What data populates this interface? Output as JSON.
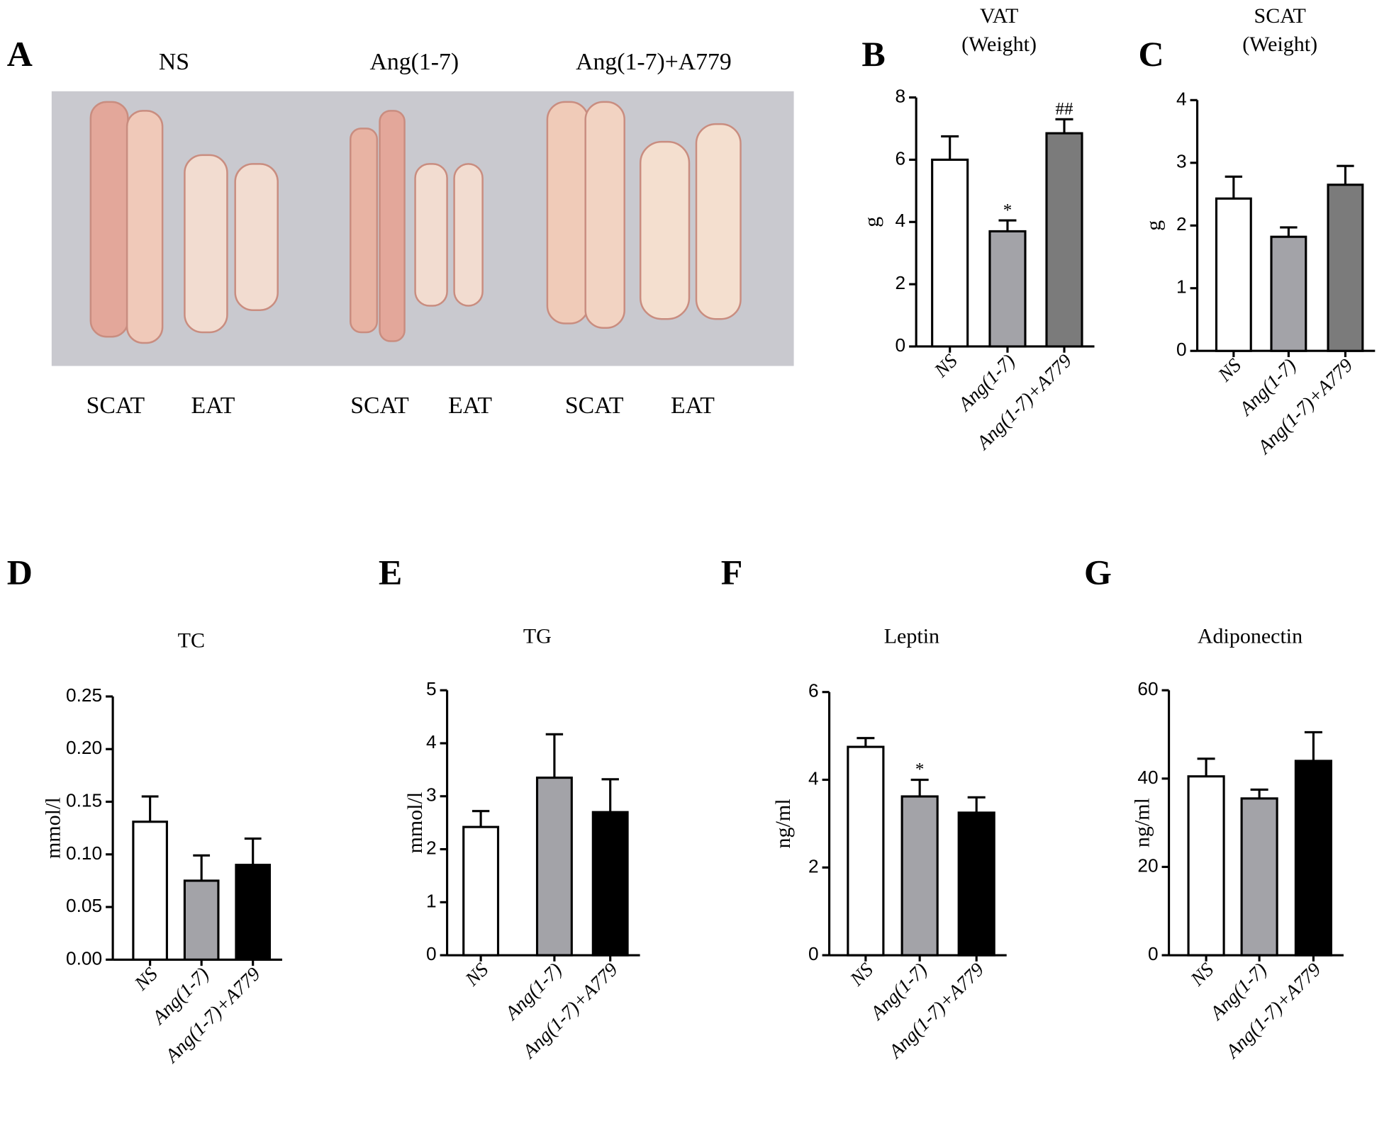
{
  "panel_a": {
    "panel_label": "A",
    "groups": [
      "NS",
      "Ang(1-7)",
      "Ang(1-7)+A779"
    ],
    "tissue_labels": [
      "SCAT",
      "EAT",
      "SCAT",
      "EAT",
      "SCAT",
      "EAT"
    ]
  },
  "chart_data": [
    {
      "type": "bar",
      "panel_label": "B",
      "title": "VAT",
      "subtitle": "(Weight)",
      "y_label": "g",
      "categories": [
        "NS",
        "Ang(1-7)",
        "Ang(1-7)+A779"
      ],
      "values": [
        6.0,
        3.7,
        6.85
      ],
      "errors": [
        0.75,
        0.35,
        0.45
      ],
      "colors": [
        "#ffffff",
        "#a3a3a8",
        "#7b7b7b"
      ],
      "ylim": [
        0,
        8
      ],
      "yticks": [
        0,
        2,
        4,
        6,
        8
      ],
      "annotations": [
        {
          "category": "Ang(1-7)",
          "text": "*"
        },
        {
          "category": "Ang(1-7)+A779",
          "text": "##"
        }
      ]
    },
    {
      "type": "bar",
      "panel_label": "C",
      "title": "SCAT",
      "subtitle": "(Weight)",
      "y_label": "g",
      "categories": [
        "NS",
        "Ang(1-7)",
        "Ang(1-7)+A779"
      ],
      "values": [
        2.43,
        1.82,
        2.65
      ],
      "errors": [
        0.35,
        0.15,
        0.3
      ],
      "colors": [
        "#ffffff",
        "#a3a3a8",
        "#7b7b7b"
      ],
      "ylim": [
        0,
        4
      ],
      "yticks": [
        0,
        1,
        2,
        3,
        4
      ]
    },
    {
      "type": "bar",
      "panel_label": "D",
      "title": "TC",
      "y_label": "mmol/l",
      "categories": [
        "NS",
        "Ang(1-7)",
        "Ang(1-7)+A779"
      ],
      "values": [
        0.131,
        0.075,
        0.09
      ],
      "errors": [
        0.024,
        0.024,
        0.025
      ],
      "colors": [
        "#ffffff",
        "#a3a3a8",
        "#000000"
      ],
      "ylim": [
        0,
        0.25
      ],
      "yticks": [
        {
          "value": 0,
          "label": "0.00"
        },
        0.05,
        {
          "value": 0.1,
          "label": "0.10"
        },
        0.15,
        {
          "value": 0.2,
          "label": "0.20"
        },
        0.25
      ]
    },
    {
      "type": "bar",
      "panel_label": "E",
      "title": "TG",
      "y_label": "mmol/l",
      "categories": [
        "NS",
        "Ang(1-7)",
        "Ang(1-7)+A779"
      ],
      "values": [
        2.42,
        3.35,
        2.7
      ],
      "errors": [
        0.3,
        0.82,
        0.62
      ],
      "colors": [
        "#ffffff",
        "#a3a3a8",
        "#000000"
      ],
      "ylim": [
        0,
        5
      ],
      "yticks": [
        0,
        1,
        2,
        3,
        4,
        5
      ]
    },
    {
      "type": "bar",
      "panel_label": "F",
      "title": "Leptin",
      "y_label": "ng/ml",
      "categories": [
        "NS",
        "Ang(1-7)",
        "Ang(1-7)+A779"
      ],
      "values": [
        4.75,
        3.62,
        3.25
      ],
      "errors": [
        0.2,
        0.38,
        0.35
      ],
      "colors": [
        "#ffffff",
        "#a3a3a8",
        "#000000"
      ],
      "ylim": [
        0,
        6
      ],
      "yticks": [
        0,
        2,
        4,
        6
      ],
      "annotations": [
        {
          "category": "Ang(1-7)",
          "text": "*"
        }
      ]
    },
    {
      "type": "bar",
      "panel_label": "G",
      "title": "Adiponectin",
      "y_label": "ng/ml",
      "categories": [
        "NS",
        "Ang(1-7)",
        "Ang(1-7)+A779"
      ],
      "values": [
        40.5,
        35.5,
        44.0
      ],
      "errors": [
        4,
        2,
        6.5
      ],
      "colors": [
        "#ffffff",
        "#a3a3a8",
        "#000000"
      ],
      "ylim": [
        0,
        60
      ],
      "yticks": [
        0,
        20,
        40,
        60
      ]
    }
  ]
}
